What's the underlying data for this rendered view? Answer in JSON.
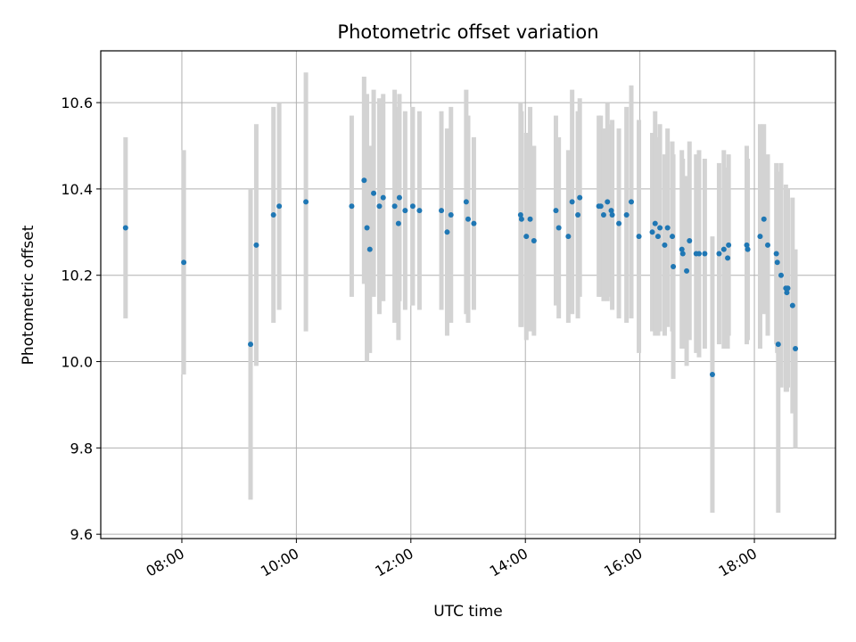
{
  "chart_data": {
    "type": "scatter",
    "title": "Photometric offset variation",
    "xlabel": "UTC time",
    "ylabel": "Photometric offset",
    "xlim": [
      "06:35",
      "19:25"
    ],
    "ylim": [
      9.59,
      10.72
    ],
    "xticks": [
      "08:00",
      "10:00",
      "12:00",
      "14:00",
      "16:00",
      "18:00"
    ],
    "yticks": [
      9.6,
      9.8,
      10.0,
      10.2,
      10.4,
      10.6
    ],
    "ytick_labels": [
      "9.6",
      "9.8",
      "10.0",
      "10.2",
      "10.4",
      "10.6"
    ],
    "grid": true,
    "marker_color": "#1f77b4",
    "errorbar_color": "#d3d3d3",
    "series": [
      {
        "x": [
          "07:01",
          "08:02",
          "09:12",
          "09:18",
          "09:36",
          "09:42",
          "10:10",
          "10:58",
          "11:11",
          "11:14",
          "11:17",
          "11:21",
          "11:27",
          "11:31",
          "11:43",
          "11:47",
          "11:48",
          "11:54",
          "12:02",
          "12:09",
          "12:32",
          "12:38",
          "12:42",
          "12:58",
          "13:00",
          "13:06",
          "13:55",
          "13:56",
          "14:01",
          "14:05",
          "14:09",
          "14:32",
          "14:35",
          "14:45",
          "14:49",
          "14:55",
          "14:57",
          "15:17",
          "15:19",
          "15:22",
          "15:26",
          "15:30",
          "15:31",
          "15:38",
          "15:46",
          "15:51",
          "15:59",
          "16:13",
          "16:16",
          "16:19",
          "16:21",
          "16:26",
          "16:29",
          "16:34",
          "16:35",
          "16:44",
          "16:45",
          "16:49",
          "16:52",
          "16:59",
          "17:02",
          "17:08",
          "17:16",
          "17:23",
          "17:28",
          "17:32",
          "17:33",
          "17:52",
          "17:53",
          "18:06",
          "18:10",
          "18:14",
          "18:23",
          "18:24",
          "18:25",
          "18:28",
          "18:33",
          "18:34",
          "18:35",
          "18:40",
          "18:43"
        ],
        "y": [
          10.31,
          10.23,
          10.04,
          10.27,
          10.34,
          10.36,
          10.37,
          10.36,
          10.42,
          10.31,
          10.26,
          10.39,
          10.36,
          10.38,
          10.36,
          10.32,
          10.38,
          10.35,
          10.36,
          10.35,
          10.35,
          10.3,
          10.34,
          10.37,
          10.33,
          10.32,
          10.34,
          10.33,
          10.29,
          10.33,
          10.28,
          10.35,
          10.31,
          10.29,
          10.37,
          10.34,
          10.38,
          10.36,
          10.36,
          10.34,
          10.37,
          10.35,
          10.34,
          10.32,
          10.34,
          10.37,
          10.29,
          10.3,
          10.32,
          10.29,
          10.31,
          10.27,
          10.31,
          10.29,
          10.22,
          10.26,
          10.25,
          10.21,
          10.28,
          10.25,
          10.25,
          10.25,
          9.97,
          10.25,
          10.26,
          10.24,
          10.27,
          10.27,
          10.26,
          10.29,
          10.33,
          10.27,
          10.25,
          10.23,
          10.04,
          10.2,
          10.17,
          10.16,
          10.17,
          10.13,
          10.03
        ],
        "yerr": [
          0.21,
          0.26,
          0.36,
          0.28,
          0.25,
          0.24,
          0.3,
          0.21,
          0.24,
          0.31,
          0.24,
          0.24,
          0.25,
          0.24,
          0.27,
          0.27,
          0.24,
          0.23,
          0.23,
          0.23,
          0.23,
          0.24,
          0.25,
          0.26,
          0.24,
          0.2,
          0.26,
          0.25,
          0.24,
          0.26,
          0.22,
          0.22,
          0.21,
          0.2,
          0.26,
          0.24,
          0.23,
          0.21,
          0.21,
          0.2,
          0.23,
          0.2,
          0.22,
          0.22,
          0.25,
          0.27,
          0.27,
          0.23,
          0.26,
          0.23,
          0.24,
          0.21,
          0.23,
          0.22,
          0.26,
          0.23,
          0.22,
          0.22,
          0.23,
          0.23,
          0.24,
          0.22,
          0.32,
          0.21,
          0.23,
          0.21,
          0.21,
          0.23,
          0.21,
          0.26,
          0.22,
          0.21,
          0.21,
          0.21,
          0.39,
          0.26,
          0.24,
          0.23,
          0.23,
          0.25,
          0.23
        ]
      }
    ]
  }
}
